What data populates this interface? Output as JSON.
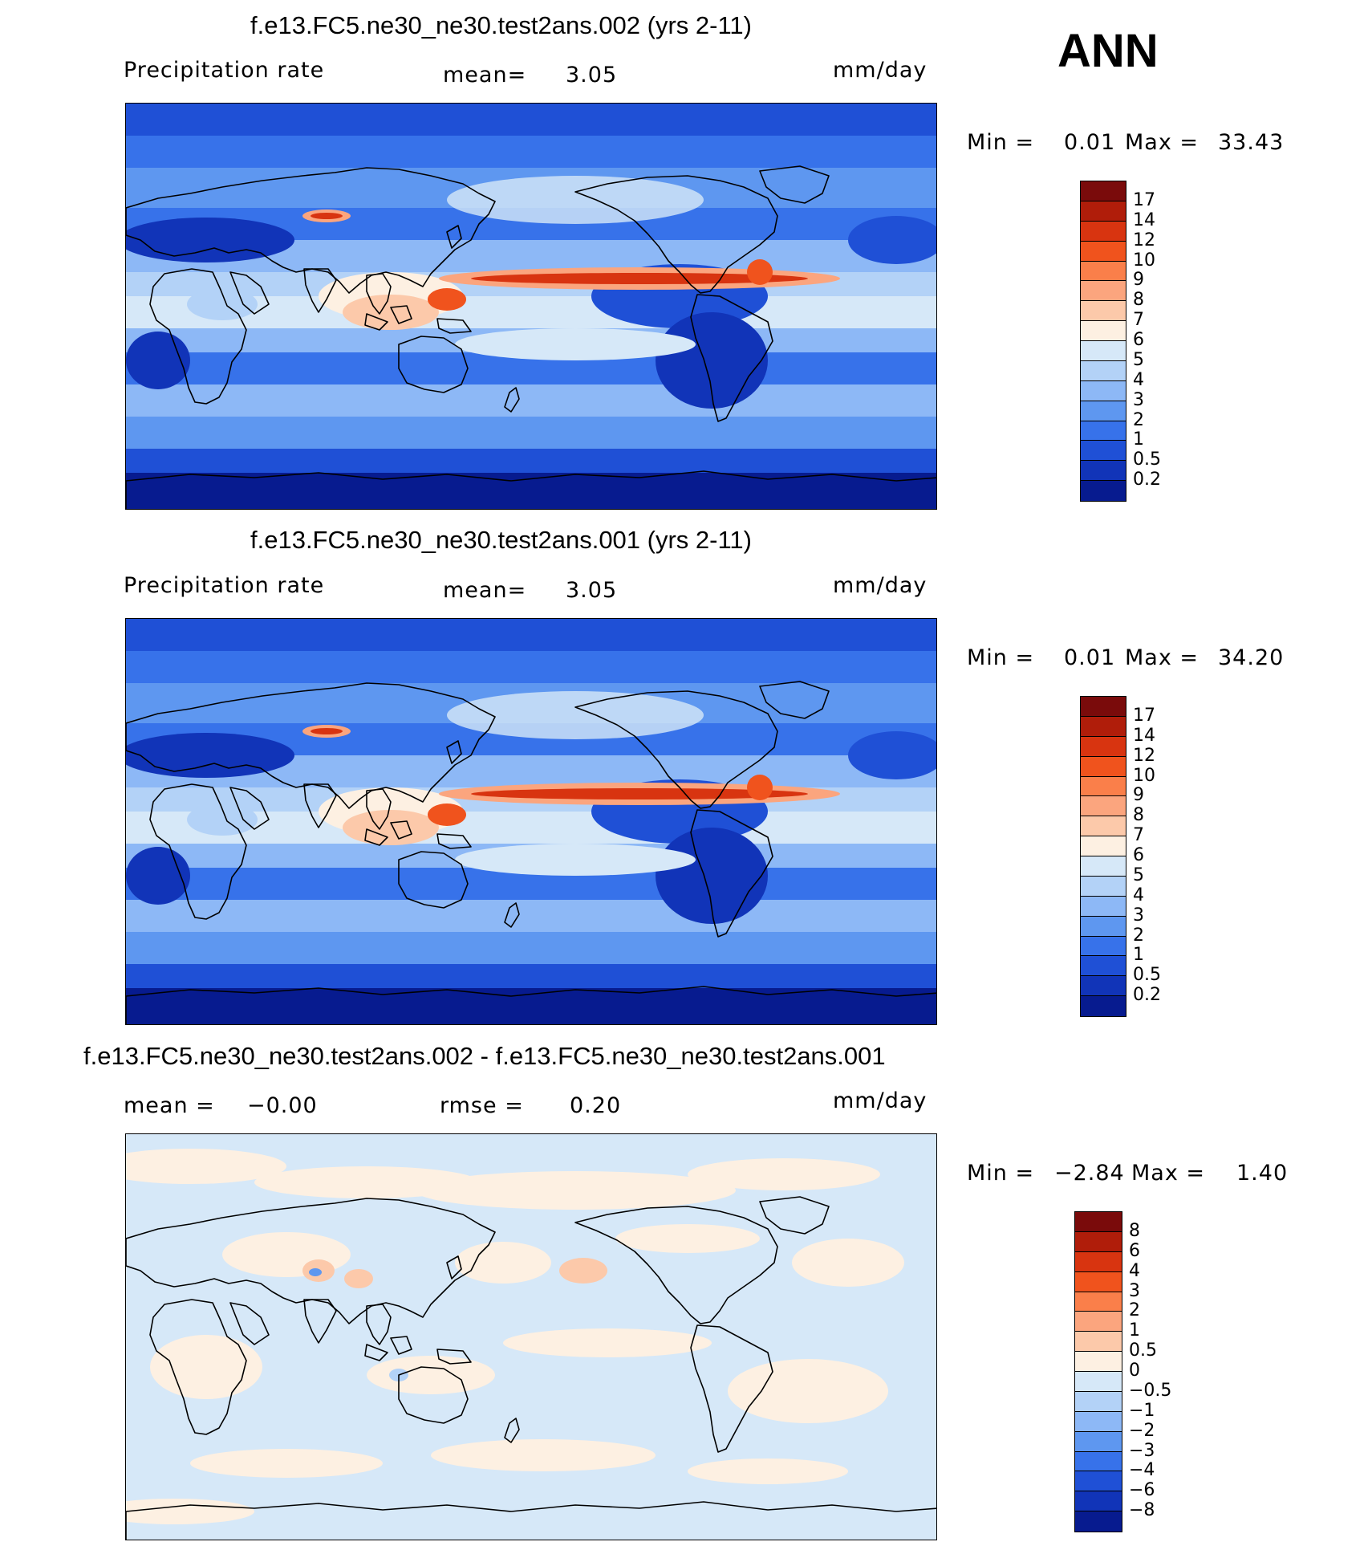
{
  "season": "ANN",
  "panels": [
    {
      "title": "f.e13.FC5.ne30_ne30.test2ans.002 (yrs 2-11)",
      "left_label": "Precipitation rate",
      "center_label": "mean=",
      "center_value": "3.05",
      "units": "mm/day",
      "min_label": "Min =",
      "min_value": "0.01",
      "max_label": "Max =",
      "max_value": "33.43"
    },
    {
      "title": "f.e13.FC5.ne30_ne30.test2ans.001 (yrs 2-11)",
      "left_label": "Precipitation rate",
      "center_label": "mean=",
      "center_value": "3.05",
      "units": "mm/day",
      "min_label": "Min =",
      "min_value": "0.01",
      "max_label": "Max =",
      "max_value": "34.20"
    },
    {
      "title": "f.e13.FC5.ne30_ne30.test2ans.002 - f.e13.FC5.ne30_ne30.test2ans.001",
      "left_label": "mean =",
      "left_value": "−0.00",
      "center_label": "rmse =",
      "center_value": "0.20",
      "units": "mm/day",
      "min_label": "Min =",
      "min_value": "−2.84",
      "max_label": "Max =",
      "max_value": "1.40"
    }
  ],
  "colorbars": {
    "precip": {
      "labels": [
        "17",
        "14",
        "12",
        "10",
        "9",
        "8",
        "7",
        "6",
        "5",
        "4",
        "3",
        "2",
        "1",
        "0.5",
        "0.2"
      ],
      "colors": [
        "#7a0b0b",
        "#b01d0a",
        "#d83410",
        "#f0531d",
        "#fa7f4a",
        "#fba57e",
        "#fcc9aa",
        "#fdf0e2",
        "#d6e8f8",
        "#b3d2f7",
        "#8db8f6",
        "#5e97f0",
        "#3772ea",
        "#1f50d6",
        "#1134b8",
        "#071b8f"
      ]
    },
    "diff": {
      "labels": [
        "8",
        "6",
        "4",
        "3",
        "2",
        "1",
        "0.5",
        "0",
        "−0.5",
        "−1",
        "−2",
        "−3",
        "−4",
        "−6",
        "−8"
      ],
      "colors": [
        "#7a0b0b",
        "#b01d0a",
        "#d83410",
        "#f0531d",
        "#fa7f4a",
        "#fba57e",
        "#fcc9aa",
        "#fdf0e2",
        "#d6e8f8",
        "#b3d2f7",
        "#8db8f6",
        "#5e97f0",
        "#3772ea",
        "#1f50d6",
        "#1134b8",
        "#071b8f"
      ]
    }
  },
  "map_palette": {
    "deep": "#071b8f",
    "dark": "#1134b8",
    "mid": "#1f50d6",
    "medium": "#3772ea",
    "light": "#5e97f0",
    "pale": "#8db8f6",
    "paler": "#b3d2f7",
    "faint": "#d6e8f8",
    "cream": "#fdf0e2",
    "peach": "#fcc9aa",
    "salmon": "#fba57e",
    "orange": "#f0531d",
    "red": "#d83410",
    "darkred": "#b01d0a"
  }
}
